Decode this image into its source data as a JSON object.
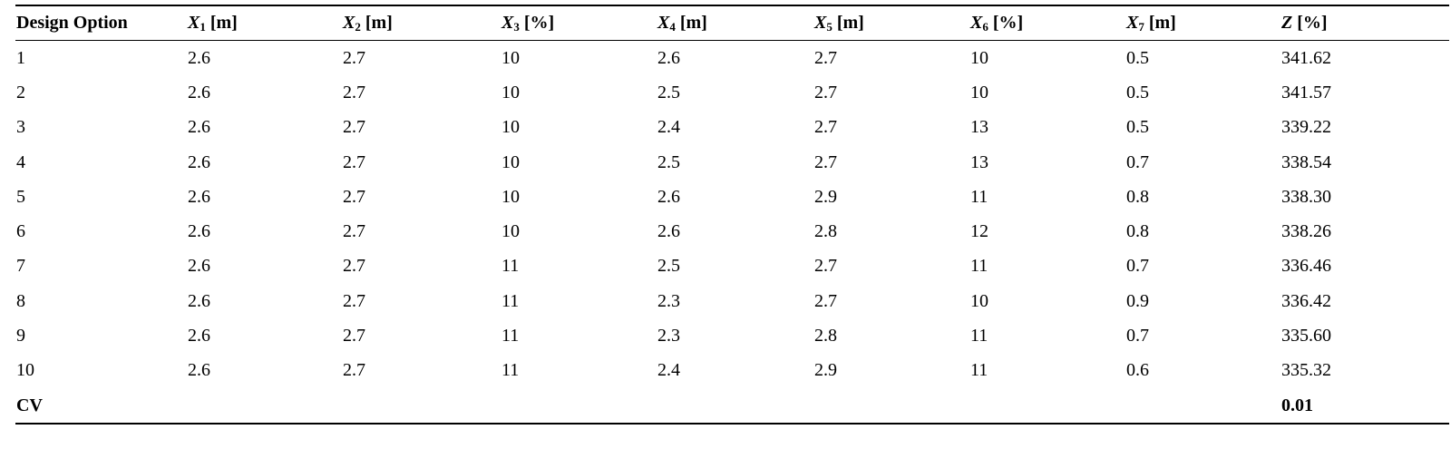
{
  "table": {
    "headers": [
      {
        "label": "Design Option",
        "var": "",
        "sub": "",
        "unit": ""
      },
      {
        "label": "",
        "var": "X",
        "sub": "1",
        "unit": " [m]"
      },
      {
        "label": "",
        "var": "X",
        "sub": "2",
        "unit": " [m]"
      },
      {
        "label": "",
        "var": "X",
        "sub": "3",
        "unit": " [%]"
      },
      {
        "label": "",
        "var": "X",
        "sub": "4",
        "unit": " [m]"
      },
      {
        "label": "",
        "var": "X",
        "sub": "5",
        "unit": " [m]"
      },
      {
        "label": "",
        "var": "X",
        "sub": "6",
        "unit": " [%]"
      },
      {
        "label": "",
        "var": "X",
        "sub": "7",
        "unit": " [m]"
      },
      {
        "label": "",
        "var": "Z",
        "sub": "",
        "unit": " [%]"
      }
    ],
    "rows": [
      [
        "1",
        "2.6",
        "2.7",
        "10",
        "2.6",
        "2.7",
        "10",
        "0.5",
        "341.62"
      ],
      [
        "2",
        "2.6",
        "2.7",
        "10",
        "2.5",
        "2.7",
        "10",
        "0.5",
        "341.57"
      ],
      [
        "3",
        "2.6",
        "2.7",
        "10",
        "2.4",
        "2.7",
        "13",
        "0.5",
        "339.22"
      ],
      [
        "4",
        "2.6",
        "2.7",
        "10",
        "2.5",
        "2.7",
        "13",
        "0.7",
        "338.54"
      ],
      [
        "5",
        "2.6",
        "2.7",
        "10",
        "2.6",
        "2.9",
        "11",
        "0.8",
        "338.30"
      ],
      [
        "6",
        "2.6",
        "2.7",
        "10",
        "2.6",
        "2.8",
        "12",
        "0.8",
        "338.26"
      ],
      [
        "7",
        "2.6",
        "2.7",
        "11",
        "2.5",
        "2.7",
        "11",
        "0.7",
        "336.46"
      ],
      [
        "8",
        "2.6",
        "2.7",
        "11",
        "2.3",
        "2.7",
        "10",
        "0.9",
        "336.42"
      ],
      [
        "9",
        "2.6",
        "2.7",
        "11",
        "2.3",
        "2.8",
        "11",
        "0.7",
        "335.60"
      ],
      [
        "10",
        "2.6",
        "2.7",
        "11",
        "2.4",
        "2.9",
        "11",
        "0.6",
        "335.32"
      ]
    ],
    "cv_row": [
      "CV",
      "",
      "",
      "",
      "",
      "",
      "",
      "",
      "0.01"
    ]
  }
}
